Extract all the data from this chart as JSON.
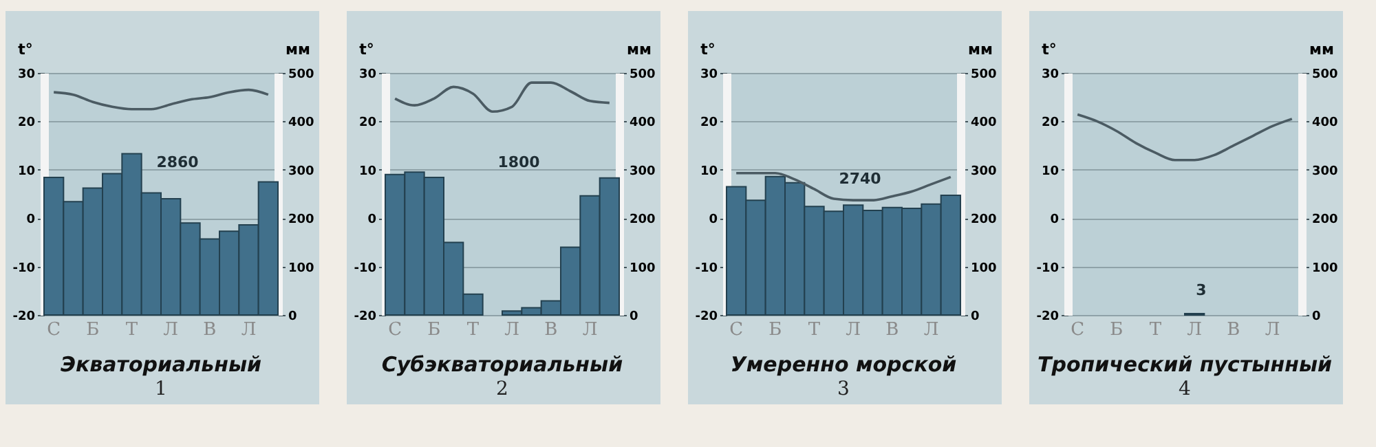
{
  "chart_data": [
    {
      "type": "bar",
      "title": "Экваториальный",
      "subtitle": "1",
      "ylabel": "t°",
      "y2label": "мм",
      "categories": [
        "С",
        null,
        "Б",
        null,
        "Т",
        null,
        "Л",
        null,
        "В",
        null,
        "Л",
        null
      ],
      "series": [
        {
          "axis": "y2",
          "color": "#41708b",
          "values": [
            284,
            234,
            262,
            292,
            333,
            252,
            240,
            190,
            157,
            173,
            186,
            275
          ]
        },
        {
          "type": "line",
          "color": "#4b5b63",
          "values": [
            26,
            25.5,
            24,
            23,
            22.5,
            22.5,
            23.5,
            24.5,
            25,
            26,
            26.5,
            25.5
          ]
        }
      ],
      "ylim": [
        -20,
        30
      ],
      "yticks": [
        -20,
        -10,
        0,
        10,
        20,
        30
      ],
      "y2lim": [
        0,
        500
      ],
      "y2ticks": [
        0,
        100,
        200,
        300,
        400,
        500
      ],
      "annotations": [
        "2860"
      ],
      "grid": "y"
    },
    {
      "type": "bar",
      "title": "Субэкваториальный",
      "subtitle": "2",
      "ylabel": "t°",
      "y2label": "мм",
      "categories": [
        "С",
        null,
        "Б",
        null,
        "Т",
        null,
        "Л",
        null,
        "В",
        null,
        "Л",
        null
      ],
      "series": [
        {
          "axis": "y2",
          "color": "#41708b",
          "values": [
            290,
            295,
            284,
            150,
            43,
            0,
            8,
            15,
            29,
            140,
            246,
            283
          ]
        },
        {
          "type": "line",
          "color": "#4b5b63",
          "values": [
            24.7,
            23.3,
            24.7,
            27.1,
            25.7,
            22,
            23,
            28,
            28,
            26.2,
            24.2,
            23.8
          ]
        }
      ],
      "ylim": [
        -20,
        30
      ],
      "yticks": [
        -20,
        -10,
        0,
        10,
        20,
        30
      ],
      "y2lim": [
        0,
        500
      ],
      "y2ticks": [
        0,
        100,
        200,
        300,
        400,
        500
      ],
      "annotations": [
        "1800"
      ],
      "grid": "y"
    },
    {
      "type": "bar",
      "title": "Умеренно морской",
      "subtitle": "3",
      "ylabel": "t°",
      "y2label": "мм",
      "categories": [
        "С",
        null,
        "Б",
        null,
        "Т",
        null,
        "Л",
        null,
        "В",
        null,
        "Л",
        null
      ],
      "series": [
        {
          "axis": "y2",
          "color": "#41708b",
          "values": [
            265,
            237,
            286,
            273,
            224,
            214,
            227,
            216,
            222,
            220,
            229,
            247
          ]
        },
        {
          "type": "line",
          "color": "#4b5b63",
          "values": [
            9.3,
            9.3,
            9.3,
            8,
            6,
            4,
            3.7,
            3.7,
            4.5,
            5.5,
            7,
            8.5
          ]
        }
      ],
      "ylim": [
        -20,
        30
      ],
      "yticks": [
        -20,
        -10,
        0,
        10,
        20,
        30
      ],
      "y2lim": [
        0,
        500
      ],
      "y2ticks": [
        0,
        100,
        200,
        300,
        400,
        500
      ],
      "annotations": [
        "2740"
      ],
      "grid": "y"
    },
    {
      "type": "bar",
      "title": "Тропический пустынный",
      "subtitle": "4",
      "ylabel": "t°",
      "y2label": "мм",
      "categories": [
        "С",
        null,
        "Б",
        null,
        "Т",
        null,
        "Л",
        null,
        "В",
        null,
        "Л",
        null
      ],
      "series": [
        {
          "axis": "y2",
          "color": "#41708b",
          "values": [
            0,
            0,
            0,
            0,
            0,
            0,
            3,
            0,
            0,
            0,
            0,
            0
          ]
        },
        {
          "type": "line",
          "color": "#4b5b63",
          "values": [
            21.4,
            20,
            18,
            15.5,
            13.5,
            12,
            12,
            13,
            15,
            17,
            19,
            20.5
          ]
        }
      ],
      "ylim": [
        -20,
        30
      ],
      "yticks": [
        -20,
        -10,
        0,
        10,
        20,
        30
      ],
      "y2lim": [
        0,
        500
      ],
      "y2ticks": [
        0,
        100,
        200,
        300,
        400,
        500
      ],
      "annotations": [
        "3"
      ],
      "grid": "y"
    }
  ]
}
